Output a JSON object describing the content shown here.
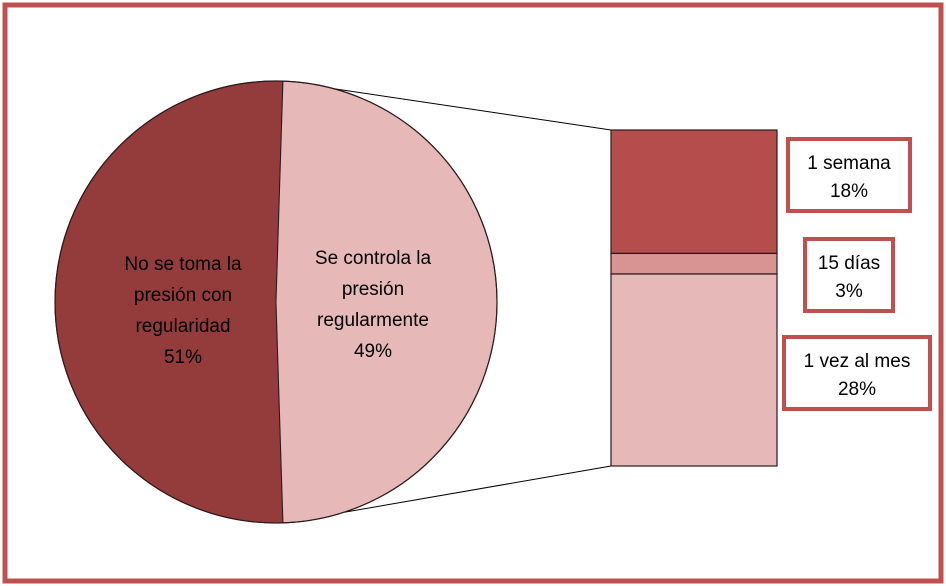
{
  "chart_data": {
    "type": "pie",
    "subtype": "bar-of-pie",
    "slices": [
      {
        "label": "No se toma la presión con regularidad",
        "label_lines": [
          "No se toma la",
          "presión con",
          "regularidad"
        ],
        "value_label": "51%",
        "value": 51,
        "color": "#943c3c"
      },
      {
        "label": "Se controla la presión regularmente",
        "label_lines": [
          "Se controla la",
          "presión",
          "regularmente"
        ],
        "value_label": "49%",
        "value": 49,
        "color": "#e6b8b8"
      }
    ],
    "breakdown_of": "Se controla la presión regularmente",
    "breakdown": [
      {
        "label": "1 semana",
        "value_label": "18%",
        "value": 18,
        "color": "#b54d4d",
        "box_color": "#c0504d"
      },
      {
        "label": "15 días",
        "value_label": "3%",
        "value": 3,
        "color": "#d89393",
        "box_color": "#c0504d"
      },
      {
        "label": "1 vez al mes",
        "value_label": "28%",
        "value": 28,
        "color": "#e6b8b8",
        "box_color": "#c0504d"
      }
    ],
    "legend": "none"
  },
  "colors": {
    "frame": "#c0504d",
    "slice_edge": "#2b1a1a",
    "connector": "#000000",
    "text": "#000000"
  }
}
